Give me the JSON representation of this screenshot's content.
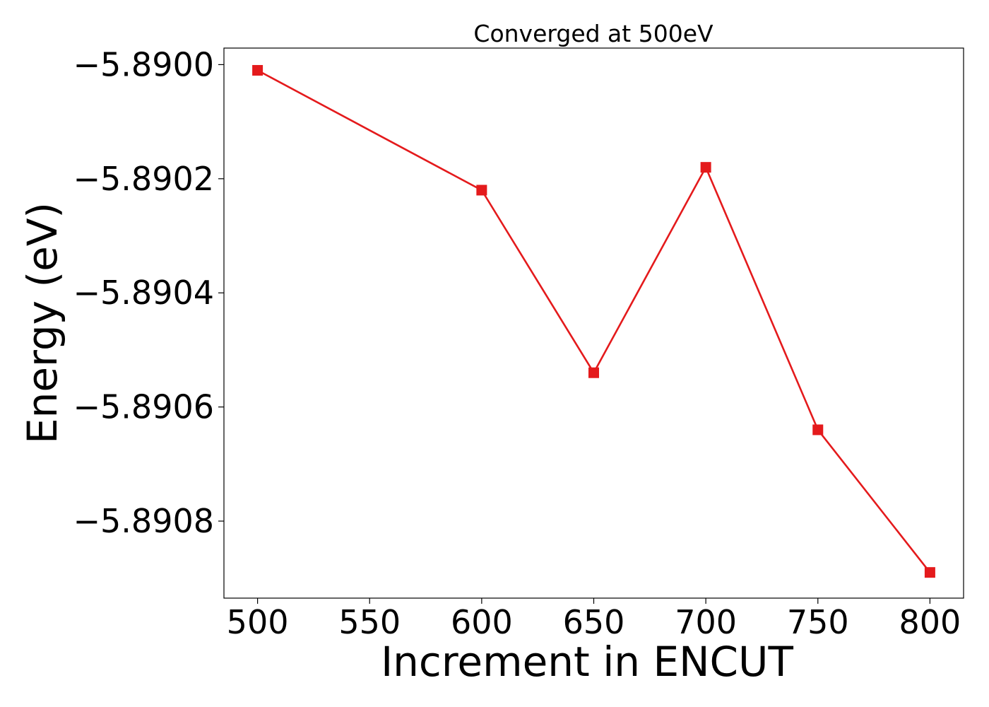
{
  "chart_data": {
    "type": "line",
    "title": "Converged at 500eV",
    "xlabel": "Increment in ENCUT",
    "ylabel": "Energy (eV)",
    "x": [
      500,
      600,
      650,
      700,
      750,
      800
    ],
    "series": [
      {
        "values": [
          -5.89001,
          -5.89022,
          -5.89054,
          -5.89018,
          -5.89064,
          -5.89089
        ],
        "color": "#e41a1c",
        "marker": "square"
      }
    ],
    "xticks": [
      500,
      550,
      600,
      650,
      700,
      750,
      800
    ],
    "xtick_labels": [
      "500",
      "550",
      "600",
      "650",
      "700",
      "750",
      "800"
    ],
    "yticks": [
      -5.89,
      -5.8902,
      -5.8904,
      -5.8906,
      -5.8908
    ],
    "ytick_labels": [
      "−5.8900",
      "−5.8902",
      "−5.8904",
      "−5.8906",
      "−5.8908"
    ],
    "xlim": [
      485,
      815
    ],
    "ylim": [
      -5.890935,
      -5.889971
    ],
    "grid": false,
    "legend": "none"
  }
}
